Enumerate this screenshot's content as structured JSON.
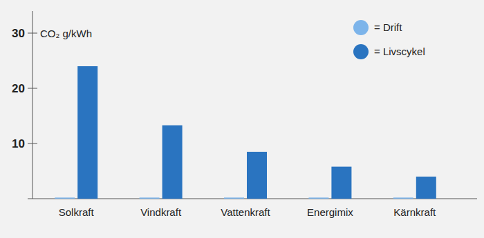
{
  "chart_data": {
    "type": "bar",
    "ylabel": "CO₂ g/kWh",
    "categories": [
      "Solkraft",
      "Vindkraft",
      "Vattenkraft",
      "Energimix",
      "Kärnkraft"
    ],
    "series": [
      {
        "name": "= Drift",
        "color": "#7cb4ea",
        "values": [
          0.2,
          0.2,
          0.2,
          0.2,
          0.2
        ]
      },
      {
        "name": "= Livscykel",
        "color": "#2a74c0",
        "values": [
          24,
          13.3,
          8.5,
          5.8,
          4
        ]
      }
    ],
    "ylim": [
      0,
      34
    ],
    "yticks": [
      10,
      20,
      30
    ],
    "grid": false,
    "legend": "upper right"
  }
}
